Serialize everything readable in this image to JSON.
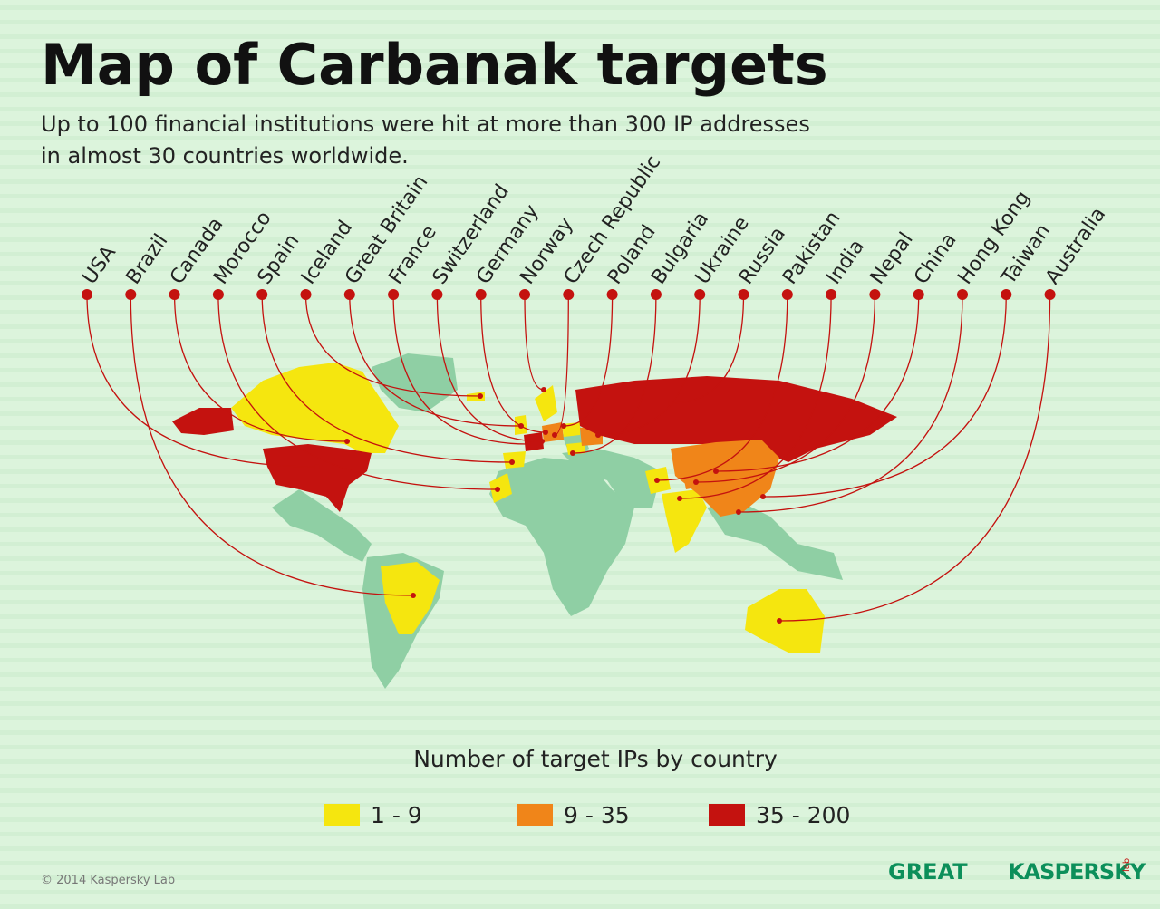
{
  "header": {
    "title": "Map of Carbanak targets",
    "subtitle_lines": [
      "Up to 100 financial institutions were hit at more than 300 IP addresses",
      "in almost 30 countries worldwide."
    ]
  },
  "countries": [
    "USA",
    "Brazil",
    "Canada",
    "Morocco",
    "Spain",
    "Iceland",
    "Great Britain",
    "France",
    "Switzerland",
    "Germany",
    "Norway",
    "Czech Republic",
    "Poland",
    "Bulgaria",
    "Ukraine",
    "Russia",
    "Pakistan",
    "India",
    "Nepal",
    "China",
    "Hong Kong",
    "Taiwan",
    "Australia"
  ],
  "legend": {
    "title": "Number of target IPs by country",
    "items": [
      {
        "label": "1 - 9",
        "color": "#f5e60f"
      },
      {
        "label": "9 - 35",
        "color": "#f08519"
      },
      {
        "label": "35 - 200",
        "color": "#c4120f"
      }
    ]
  },
  "footer": {
    "copyright": "© 2014 Kaspersky Lab",
    "logo_great": "GREAT",
    "logo_kaspersky": "KASPERSKY",
    "logo_lab": "lab"
  }
}
